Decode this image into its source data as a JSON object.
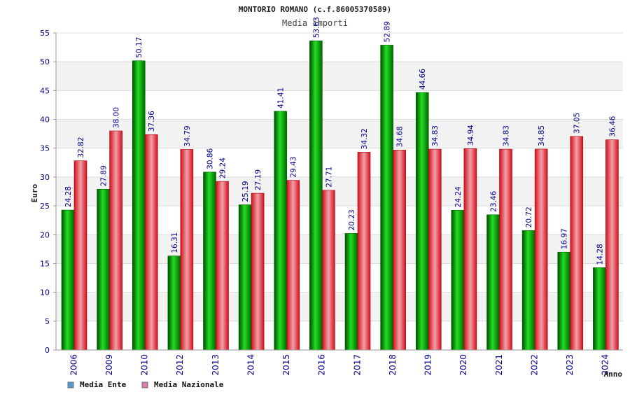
{
  "chart_data": {
    "type": "bar",
    "title": "MONTORIO ROMANO (c.f.86005370589)",
    "subtitle": "Media importi",
    "xlabel": "Anno",
    "ylabel": "Euro",
    "ylim": [
      0,
      55
    ],
    "yticks": [
      0,
      5,
      10,
      15,
      20,
      25,
      30,
      35,
      40,
      45,
      50,
      55
    ],
    "grid": true,
    "legend_position": "bottom-left",
    "categories": [
      "2006",
      "2009",
      "2010",
      "2012",
      "2013",
      "2014",
      "2015",
      "2016",
      "2017",
      "2018",
      "2019",
      "2020",
      "2021",
      "2022",
      "2023",
      "2024"
    ],
    "series": [
      {
        "name": "Media Ente",
        "color": "#00aa00",
        "legend_color": "#5b9bd5",
        "values": [
          24.28,
          27.89,
          50.17,
          16.31,
          30.86,
          25.19,
          41.41,
          53.63,
          20.23,
          52.89,
          44.66,
          24.24,
          23.46,
          20.72,
          16.97,
          14.28
        ],
        "labels": [
          "24.28",
          "27.89",
          "50.17",
          "16.31",
          "30.86",
          "25.19",
          "41.41",
          "53.63",
          "20.23",
          "52.89",
          "44.66",
          "24.24",
          "23.46",
          "20.72",
          "16.97",
          "14.28"
        ]
      },
      {
        "name": "Media Nazionale",
        "color": "#e8202a",
        "legend_color": "#d97fb0",
        "values": [
          32.82,
          38.0,
          37.36,
          34.79,
          29.24,
          27.19,
          29.43,
          27.71,
          34.32,
          34.68,
          34.83,
          34.94,
          34.83,
          34.85,
          37.05,
          36.46
        ],
        "labels": [
          "32.82",
          "38.00",
          "37.36",
          "34.79",
          "29.24",
          "27.19",
          "29.43",
          "27.71",
          "34.32",
          "34.68",
          "34.83",
          "34.94",
          "34.83",
          "34.85",
          "37.05",
          "36.46"
        ]
      }
    ]
  }
}
